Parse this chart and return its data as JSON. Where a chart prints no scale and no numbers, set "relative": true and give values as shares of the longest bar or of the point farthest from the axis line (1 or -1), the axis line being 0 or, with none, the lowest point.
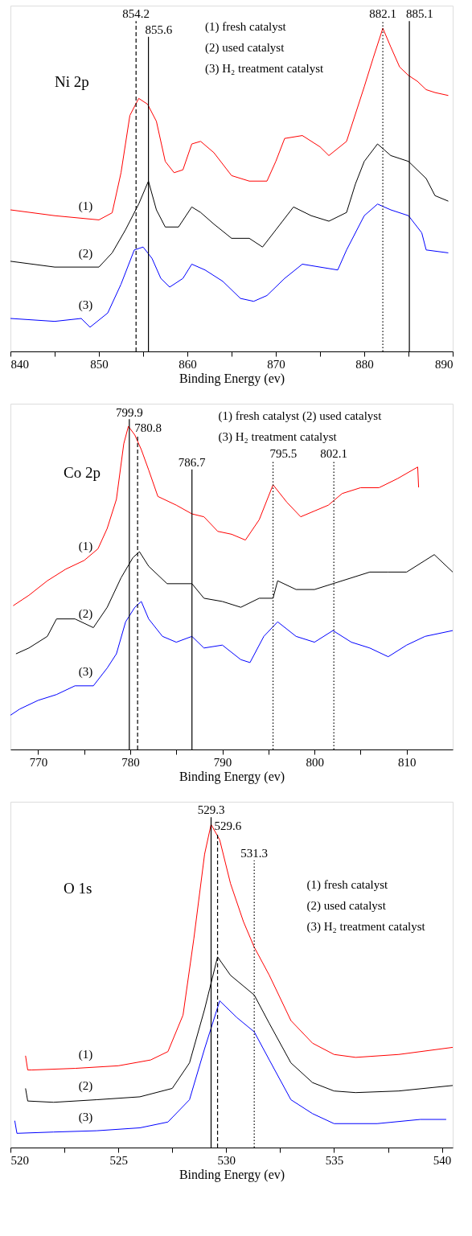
{
  "chart_data": [
    {
      "type": "line",
      "title": "Ni 2p",
      "xlabel": "Binding Energy (ev)",
      "relative": true,
      "tick_labels": "x",
      "xlim": [
        840,
        890
      ],
      "xticks": [
        840,
        {
          "value": 845,
          "label": null
        },
        850,
        {
          "value": 855,
          "label": null
        },
        860,
        {
          "value": 865,
          "label": null
        },
        870,
        {
          "value": 875,
          "label": null
        },
        880,
        {
          "value": 885,
          "label": null
        },
        890
      ],
      "annotations": [
        "(1) fresh catalyst",
        "(2) used catalyst",
        "(3) H₂ treatment catalyst"
      ],
      "ref_lines": [
        {
          "axis": "x",
          "value": 854.2,
          "label": "854.2",
          "line_style": "dashed"
        },
        {
          "axis": "x",
          "value": 855.6,
          "label": "855.6",
          "line_style": "solid"
        },
        {
          "axis": "x",
          "value": 882.1,
          "label": "882.1",
          "line_style": "dotted"
        },
        {
          "axis": "x",
          "value": 885.1,
          "label": "885.1",
          "line_style": "solid"
        }
      ],
      "series": [
        {
          "name": "(1)",
          "color": "#ff0000",
          "x": [
            840,
            845,
            850,
            851.5,
            852.5,
            853.5,
            854.5,
            855.5,
            856.5,
            857.5,
            858.5,
            859.5,
            860.5,
            861.5,
            863,
            865,
            867,
            869,
            870,
            871,
            873,
            875,
            876,
            878,
            880,
            881,
            882.1,
            883,
            884,
            885,
            886,
            887,
            888,
            889.5
          ],
          "values": [
            0.438,
            0.42,
            0.407,
            0.429,
            0.553,
            0.73,
            0.783,
            0.765,
            0.712,
            0.588,
            0.553,
            0.562,
            0.642,
            0.65,
            0.615,
            0.544,
            0.527,
            0.527,
            0.588,
            0.659,
            0.668,
            0.633,
            0.606,
            0.65,
            0.819,
            0.907,
            1.0,
            0.942,
            0.88,
            0.854,
            0.836,
            0.81,
            0.801,
            0.792
          ]
        },
        {
          "name": "(2)",
          "color": "#000000",
          "x": [
            840,
            845,
            850,
            851.5,
            853,
            854.5,
            855.6,
            856.5,
            857.5,
            859,
            860.5,
            861.5,
            863,
            865,
            867,
            868.5,
            870,
            872,
            874,
            876,
            878,
            879,
            880,
            881.5,
            883,
            885,
            887,
            888,
            889.5
          ],
          "values": [
            0.279,
            0.261,
            0.261,
            0.305,
            0.376,
            0.456,
            0.527,
            0.438,
            0.385,
            0.385,
            0.447,
            0.43,
            0.394,
            0.35,
            0.35,
            0.323,
            0.376,
            0.447,
            0.42,
            0.403,
            0.43,
            0.518,
            0.588,
            0.642,
            0.606,
            0.588,
            0.535,
            0.482,
            0.465
          ]
        },
        {
          "name": "(3)",
          "color": "#0000ff",
          "x": [
            840,
            845,
            848,
            849,
            851,
            852.5,
            854,
            855,
            856,
            857,
            858,
            859.5,
            860.5,
            862,
            864,
            866,
            867.5,
            869,
            871,
            873,
            875,
            877,
            878,
            880,
            881.5,
            883,
            885,
            886.5,
            887,
            889.5
          ],
          "values": [
            0.102,
            0.093,
            0.102,
            0.075,
            0.119,
            0.208,
            0.314,
            0.323,
            0.288,
            0.226,
            0.199,
            0.226,
            0.27,
            0.252,
            0.217,
            0.164,
            0.155,
            0.173,
            0.226,
            0.27,
            0.261,
            0.252,
            0.314,
            0.42,
            0.456,
            0.438,
            0.42,
            0.367,
            0.314,
            0.305
          ]
        }
      ]
    },
    {
      "type": "line",
      "title": "Co 2p",
      "xlabel": "Binding Energy (ev)",
      "relative": true,
      "tick_labels": "x",
      "xlim": [
        767,
        815
      ],
      "xticks": [
        770,
        {
          "value": 775,
          "label": null
        },
        780,
        {
          "value": 785,
          "label": null
        },
        790,
        {
          "value": 795,
          "label": null
        },
        800,
        {
          "value": 805,
          "label": null
        },
        810
      ],
      "annotations": [
        "(1) fresh catalyst  (2) used catalyst",
        "(3) H₂ treatment catalyst",
        {
          "text": "799.9",
          "x": 779.9,
          "y": 1.02
        }
      ],
      "ref_lines": [
        {
          "axis": "x",
          "value": 779.9,
          "line_style": "solid"
        },
        {
          "axis": "x",
          "value": 780.8,
          "label": "780.8",
          "line_style": "dashed"
        },
        {
          "axis": "x",
          "value": 786.7,
          "label": "786.7",
          "line_style": "solid"
        },
        {
          "axis": "x",
          "value": 795.5,
          "label": "795.5",
          "line_style": "dotted"
        },
        {
          "axis": "x",
          "value": 802.1,
          "label": "802.1",
          "line_style": "dotted"
        }
      ],
      "series": [
        {
          "name": "(1)",
          "color": "#ff0000",
          "x": [
            767.3,
            769,
            771,
            773,
            775,
            776.5,
            777.5,
            778.5,
            779.3,
            779.8,
            780.5,
            781.2,
            782,
            783,
            785,
            786.7,
            788,
            789.5,
            791,
            792.5,
            794,
            795.5,
            797,
            798.5,
            800,
            801.5,
            803,
            805,
            807,
            809,
            811.2,
            811.3
          ],
          "values": [
            0.445,
            0.477,
            0.522,
            0.558,
            0.585,
            0.621,
            0.684,
            0.774,
            0.946,
            1.0,
            0.973,
            0.928,
            0.865,
            0.783,
            0.756,
            0.729,
            0.72,
            0.675,
            0.666,
            0.648,
            0.711,
            0.819,
            0.765,
            0.72,
            0.738,
            0.756,
            0.792,
            0.81,
            0.81,
            0.838,
            0.874,
            0.811
          ]
        },
        {
          "name": "(2)",
          "color": "#000000",
          "x": [
            767.6,
            769,
            771,
            772,
            774,
            776,
            777.5,
            779,
            780.3,
            781,
            782,
            784,
            786.7,
            788,
            790,
            792,
            794,
            795.5,
            796,
            798,
            800,
            802,
            804,
            806,
            808,
            810,
            812,
            813,
            815
          ],
          "values": [
            0.296,
            0.314,
            0.35,
            0.404,
            0.404,
            0.377,
            0.44,
            0.531,
            0.594,
            0.612,
            0.567,
            0.513,
            0.513,
            0.468,
            0.458,
            0.44,
            0.468,
            0.468,
            0.522,
            0.495,
            0.495,
            0.513,
            0.531,
            0.549,
            0.549,
            0.549,
            0.585,
            0.603,
            0.549
          ]
        },
        {
          "name": "(3)",
          "color": "#0000ff",
          "x": [
            767,
            768,
            770,
            772,
            774,
            776,
            777.5,
            778.5,
            779.5,
            780.5,
            781.2,
            782,
            783.5,
            785,
            786.7,
            788,
            790,
            792,
            793,
            794.5,
            796,
            798,
            800,
            802,
            804,
            806,
            808,
            810,
            812,
            815
          ],
          "values": [
            0.106,
            0.125,
            0.152,
            0.17,
            0.197,
            0.197,
            0.252,
            0.296,
            0.395,
            0.44,
            0.458,
            0.404,
            0.35,
            0.332,
            0.35,
            0.314,
            0.323,
            0.278,
            0.269,
            0.35,
            0.395,
            0.35,
            0.332,
            0.368,
            0.332,
            0.314,
            0.287,
            0.323,
            0.35,
            0.368
          ]
        }
      ]
    },
    {
      "type": "line",
      "title": "O 1s",
      "xlabel": "Binding Energy (ev)",
      "relative": true,
      "tick_labels": "x",
      "xlim": [
        520,
        540.5
      ],
      "xticks": [
        520,
        {
          "value": 522.5,
          "label": null
        },
        525,
        {
          "value": 527.5,
          "label": null
        },
        530,
        {
          "value": 532.5,
          "label": null
        },
        535,
        {
          "value": 537.5,
          "label": null
        },
        540
      ],
      "annotations": [
        "(1) fresh catalyst",
        "(2) used catalyst",
        "(3) H₂ treatment catalyst"
      ],
      "ref_lines": [
        {
          "axis": "x",
          "value": 529.3,
          "label": "529.3",
          "line_style": "solid"
        },
        {
          "axis": "x",
          "value": 529.6,
          "label": "529.6",
          "line_style": "dashed"
        },
        {
          "axis": "x",
          "value": 531.3,
          "label": "531.3",
          "line_style": "dotted"
        }
      ],
      "series": [
        {
          "name": "(1)",
          "color": "#ff0000",
          "x": [
            520.7,
            520.8,
            521,
            523,
            525,
            526.5,
            527.3,
            528,
            528.5,
            529,
            529.3,
            529.7,
            530.2,
            530.8,
            531.3,
            532,
            533,
            534,
            535,
            536,
            538,
            540.5
          ],
          "values": [
            0.284,
            0.24,
            0.24,
            0.245,
            0.253,
            0.271,
            0.297,
            0.41,
            0.646,
            0.908,
            1.0,
            0.952,
            0.817,
            0.699,
            0.62,
            0.533,
            0.393,
            0.323,
            0.288,
            0.279,
            0.288,
            0.31
          ]
        },
        {
          "name": "(2)",
          "color": "#000000",
          "x": [
            520.7,
            520.8,
            522,
            524,
            526,
            527.5,
            528.3,
            529,
            529.6,
            530.2,
            531.3,
            532,
            533,
            534,
            535,
            536,
            538,
            540.5
          ],
          "values": [
            0.183,
            0.144,
            0.14,
            0.148,
            0.157,
            0.183,
            0.262,
            0.428,
            0.59,
            0.533,
            0.472,
            0.384,
            0.262,
            0.201,
            0.175,
            0.17,
            0.175,
            0.192
          ]
        },
        {
          "name": "(3)",
          "color": "#0000ff",
          "x": [
            520.2,
            520.3,
            522,
            524,
            526,
            527.3,
            528.3,
            529,
            529.7,
            530.5,
            531.3,
            532,
            533,
            534,
            535,
            537,
            539,
            540.2
          ],
          "values": [
            0.083,
            0.044,
            0.048,
            0.052,
            0.061,
            0.079,
            0.148,
            0.306,
            0.454,
            0.402,
            0.358,
            0.271,
            0.148,
            0.105,
            0.074,
            0.074,
            0.087,
            0.087
          ]
        }
      ]
    }
  ]
}
